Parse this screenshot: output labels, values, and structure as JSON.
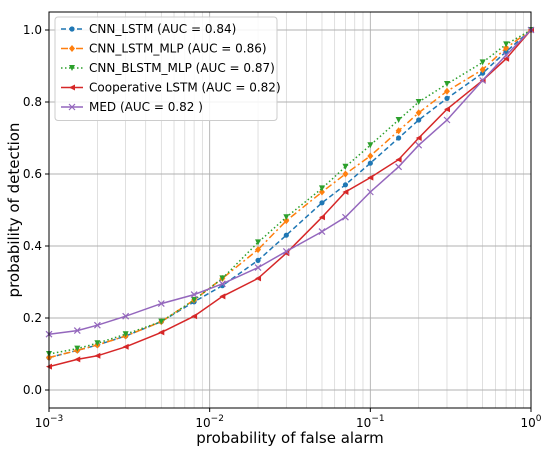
{
  "chart_data": {
    "type": "line",
    "xlabel": "probability of false alarm",
    "ylabel": "probability of detection",
    "xscale": "log",
    "xlim": [
      0.001,
      1
    ],
    "ylim": [
      -0.05,
      1.05
    ],
    "grid": true,
    "legend_position": "top-left",
    "x_ticks": [
      {
        "value": 0.001,
        "base": "10",
        "exp": "−3"
      },
      {
        "value": 0.01,
        "base": "10",
        "exp": "−2"
      },
      {
        "value": 0.1,
        "base": "10",
        "exp": "−1"
      },
      {
        "value": 1,
        "base": "10",
        "exp": "0"
      }
    ],
    "y_ticks": [
      {
        "value": 0.0,
        "label": "0.0"
      },
      {
        "value": 0.2,
        "label": "0.2"
      },
      {
        "value": 0.4,
        "label": "0.4"
      },
      {
        "value": 0.6,
        "label": "0.6"
      },
      {
        "value": 0.8,
        "label": "0.8"
      },
      {
        "value": 1.0,
        "label": "1.0"
      }
    ],
    "series": [
      {
        "name": "CNN_LSTM (AUC = 0.84)",
        "color": "#1f77b4",
        "linestyle": "dashed",
        "marker": "circle",
        "x": [
          0.001,
          0.0015,
          0.002,
          0.003,
          0.005,
          0.008,
          0.012,
          0.02,
          0.03,
          0.05,
          0.07,
          0.1,
          0.15,
          0.2,
          0.3,
          0.5,
          0.7,
          1.0
        ],
        "y": [
          0.09,
          0.11,
          0.125,
          0.15,
          0.19,
          0.245,
          0.29,
          0.36,
          0.43,
          0.52,
          0.57,
          0.63,
          0.7,
          0.75,
          0.81,
          0.88,
          0.94,
          1.0
        ]
      },
      {
        "name": "CNN_LSTM_MLP (AUC = 0.86)",
        "color": "#ff7f0e",
        "linestyle": "dashdot",
        "marker": "diamond",
        "x": [
          0.001,
          0.0015,
          0.002,
          0.003,
          0.005,
          0.008,
          0.012,
          0.02,
          0.03,
          0.05,
          0.07,
          0.1,
          0.15,
          0.2,
          0.3,
          0.5,
          0.7,
          1.0
        ],
        "y": [
          0.09,
          0.11,
          0.125,
          0.15,
          0.19,
          0.25,
          0.31,
          0.39,
          0.47,
          0.55,
          0.6,
          0.65,
          0.72,
          0.77,
          0.83,
          0.89,
          0.95,
          1.0
        ]
      },
      {
        "name": "CNN_BLSTM_MLP (AUC = 0.87)",
        "color": "#2ca02c",
        "linestyle": "dotted",
        "marker": "triangle-down",
        "x": [
          0.001,
          0.0015,
          0.002,
          0.003,
          0.005,
          0.008,
          0.012,
          0.02,
          0.03,
          0.05,
          0.07,
          0.1,
          0.15,
          0.2,
          0.3,
          0.5,
          0.7,
          1.0
        ],
        "y": [
          0.1,
          0.115,
          0.13,
          0.155,
          0.19,
          0.25,
          0.31,
          0.41,
          0.48,
          0.56,
          0.62,
          0.68,
          0.75,
          0.8,
          0.85,
          0.91,
          0.96,
          1.0
        ]
      },
      {
        "name": "Cooperative LSTM (AUC = 0.82)",
        "color": "#d62728",
        "linestyle": "solid",
        "marker": "triangle-left",
        "x": [
          0.001,
          0.0015,
          0.002,
          0.003,
          0.005,
          0.008,
          0.012,
          0.02,
          0.03,
          0.05,
          0.07,
          0.1,
          0.15,
          0.2,
          0.3,
          0.5,
          0.7,
          1.0
        ],
        "y": [
          0.065,
          0.085,
          0.095,
          0.12,
          0.16,
          0.205,
          0.26,
          0.31,
          0.38,
          0.48,
          0.55,
          0.59,
          0.64,
          0.7,
          0.78,
          0.86,
          0.92,
          1.0
        ]
      },
      {
        "name": "MED (AUC = 0.82 )",
        "color": "#9467bd",
        "linestyle": "solid",
        "marker": "x",
        "x": [
          0.001,
          0.0015,
          0.002,
          0.003,
          0.005,
          0.008,
          0.012,
          0.02,
          0.03,
          0.05,
          0.07,
          0.1,
          0.15,
          0.2,
          0.3,
          0.5,
          0.7,
          1.0
        ],
        "y": [
          0.155,
          0.165,
          0.18,
          0.205,
          0.24,
          0.265,
          0.295,
          0.34,
          0.385,
          0.44,
          0.48,
          0.55,
          0.62,
          0.68,
          0.75,
          0.86,
          0.93,
          1.0
        ]
      }
    ]
  }
}
